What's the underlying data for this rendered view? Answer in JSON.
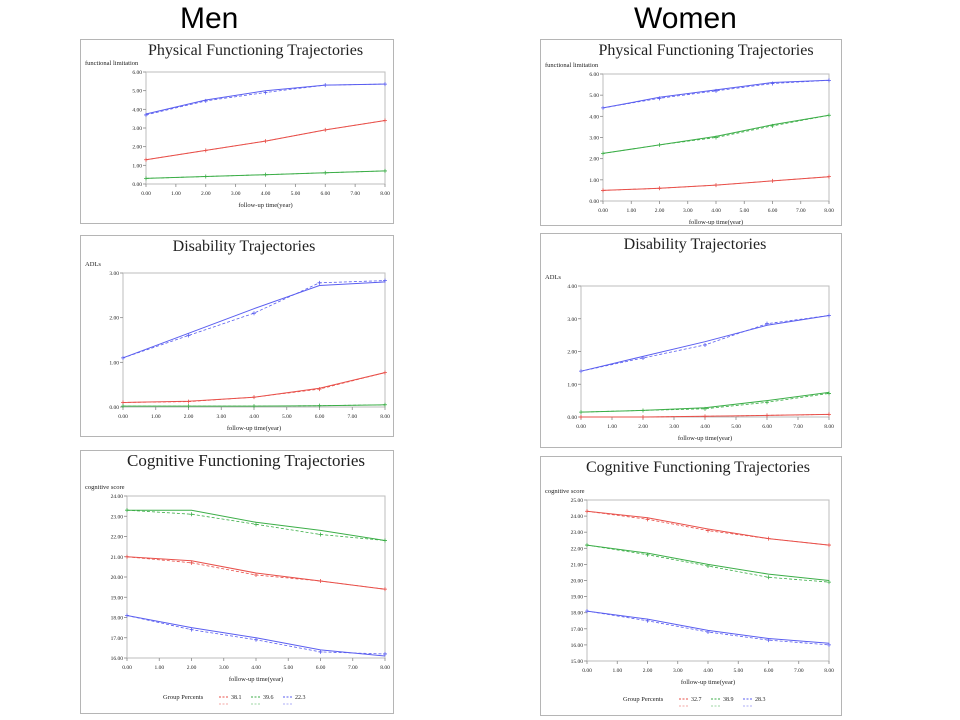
{
  "headings": {
    "left": "Men",
    "right": "Women"
  },
  "colors": {
    "red": "#e8504a",
    "green": "#3cae48",
    "blue": "#5a5ef0"
  },
  "chart_data": [
    {
      "id": "men-pf",
      "type": "line",
      "title": "Physical Functioning Trajectories",
      "ylabel": "functional limitation",
      "xlabel": "follow-up time(year)",
      "x": [
        0,
        2,
        4,
        6,
        8
      ],
      "xlim": [
        0,
        8
      ],
      "ylim": [
        0,
        6
      ],
      "xticks": [
        "0.00",
        "1.00",
        "2.00",
        "3.00",
        "4.00",
        "5.00",
        "6.00",
        "7.00",
        "8.00"
      ],
      "yticks": [
        "0.00",
        "1.00",
        "2.00",
        "3.00",
        "4.00",
        "5.00",
        "6.00"
      ],
      "series": [
        {
          "color": "red",
          "values": [
            1.3,
            1.8,
            2.3,
            2.9,
            3.4
          ],
          "observed": [
            1.3,
            1.8,
            2.3,
            2.9,
            3.4
          ]
        },
        {
          "color": "green",
          "values": [
            0.3,
            0.4,
            0.5,
            0.6,
            0.7
          ],
          "observed": [
            0.3,
            0.4,
            0.5,
            0.6,
            0.7
          ]
        },
        {
          "color": "blue",
          "values": [
            3.75,
            4.5,
            5.0,
            5.3,
            5.35
          ],
          "observed": [
            3.7,
            4.45,
            4.9,
            5.3,
            5.35
          ]
        }
      ]
    },
    {
      "id": "men-dis",
      "type": "line",
      "title": "Disability Trajectories",
      "ylabel": "ADLs",
      "xlabel": "follow-up time(year)",
      "x": [
        0,
        2,
        4,
        6,
        8
      ],
      "xlim": [
        0,
        8
      ],
      "ylim": [
        0,
        3
      ],
      "xticks": [
        "0.00",
        "1.00",
        "2.00",
        "3.00",
        "4.00",
        "5.00",
        "6.00",
        "7.00",
        "8.00"
      ],
      "yticks": [
        "0.00",
        "1.00",
        "2.00",
        "3.00"
      ],
      "series": [
        {
          "color": "red",
          "values": [
            0.1,
            0.13,
            0.22,
            0.42,
            0.77
          ],
          "observed": [
            0.1,
            0.12,
            0.22,
            0.4,
            0.77
          ]
        },
        {
          "color": "green",
          "values": [
            0.02,
            0.02,
            0.02,
            0.03,
            0.05
          ],
          "observed": [
            0.02,
            0.02,
            0.02,
            0.03,
            0.05
          ]
        },
        {
          "color": "blue",
          "values": [
            1.1,
            1.65,
            2.2,
            2.72,
            2.8
          ],
          "observed": [
            1.1,
            1.6,
            2.1,
            2.78,
            2.83
          ]
        }
      ]
    },
    {
      "id": "men-cog",
      "type": "line",
      "title": "Cognitive Functioning Trajectories",
      "ylabel": "cognitive score",
      "xlabel": "follow-up time(year)",
      "x": [
        0,
        2,
        4,
        6,
        8
      ],
      "xlim": [
        0,
        8
      ],
      "ylim": [
        16,
        24
      ],
      "xticks": [
        "0.00",
        "1.00",
        "2.00",
        "3.00",
        "4.00",
        "5.00",
        "6.00",
        "7.00",
        "8.00"
      ],
      "yticks": [
        "16.00",
        "17.00",
        "18.00",
        "19.00",
        "20.00",
        "21.00",
        "22.00",
        "23.00",
        "24.00"
      ],
      "legend": {
        "label": "Group Percents",
        "entries": [
          {
            "color": "red",
            "text": "38.1"
          },
          {
            "color": "green",
            "text": "39.6"
          },
          {
            "color": "blue",
            "text": "22.3"
          }
        ]
      },
      "series": [
        {
          "color": "red",
          "values": [
            21.0,
            20.8,
            20.2,
            19.8,
            19.4
          ],
          "observed": [
            21.0,
            20.7,
            20.1,
            19.8,
            19.4
          ]
        },
        {
          "color": "green",
          "values": [
            23.3,
            23.3,
            22.7,
            22.3,
            21.8
          ],
          "observed": [
            23.3,
            23.1,
            22.6,
            22.1,
            21.8
          ]
        },
        {
          "color": "blue",
          "values": [
            18.1,
            17.5,
            17.0,
            16.4,
            16.1
          ],
          "observed": [
            18.1,
            17.4,
            16.9,
            16.3,
            16.2
          ]
        }
      ]
    },
    {
      "id": "women-pf",
      "type": "line",
      "title": "Physical Functioning Trajectories",
      "ylabel": "functional limitation",
      "xlabel": "follow-up time(year)",
      "x": [
        0,
        2,
        4,
        6,
        8
      ],
      "xlim": [
        0,
        8
      ],
      "ylim": [
        0,
        6
      ],
      "xticks": [
        "0.00",
        "1.00",
        "2.00",
        "3.00",
        "4.00",
        "5.00",
        "6.00",
        "7.00",
        "8.00"
      ],
      "yticks": [
        "0.00",
        "1.00",
        "2.00",
        "3.00",
        "4.00",
        "5.00",
        "6.00"
      ],
      "series": [
        {
          "color": "red",
          "values": [
            0.5,
            0.6,
            0.75,
            0.95,
            1.15
          ],
          "observed": [
            0.5,
            0.6,
            0.75,
            0.95,
            1.15
          ]
        },
        {
          "color": "green",
          "values": [
            2.25,
            2.65,
            3.05,
            3.6,
            4.05
          ],
          "observed": [
            2.25,
            2.65,
            3.0,
            3.55,
            4.05
          ]
        },
        {
          "color": "blue",
          "values": [
            4.4,
            4.9,
            5.25,
            5.6,
            5.7
          ],
          "observed": [
            4.4,
            4.85,
            5.2,
            5.55,
            5.7
          ]
        }
      ]
    },
    {
      "id": "women-dis",
      "type": "line",
      "title": "Disability Trajectories",
      "ylabel": "ADLs",
      "xlabel": "follow-up time(year)",
      "x": [
        0,
        2,
        4,
        6,
        8
      ],
      "xlim": [
        0,
        8
      ],
      "ylim": [
        0,
        4
      ],
      "xticks": [
        "0.00",
        "1.00",
        "2.00",
        "3.00",
        "4.00",
        "5.00",
        "6.00",
        "7.00",
        "8.00"
      ],
      "yticks": [
        "0.00",
        "1.00",
        "2.00",
        "3.00",
        "4.00"
      ],
      "series": [
        {
          "color": "red",
          "values": [
            0.0,
            0.0,
            0.02,
            0.05,
            0.08
          ],
          "observed": [
            0.0,
            0.0,
            0.02,
            0.05,
            0.08
          ]
        },
        {
          "color": "green",
          "values": [
            0.15,
            0.2,
            0.28,
            0.5,
            0.75
          ],
          "observed": [
            0.15,
            0.2,
            0.25,
            0.45,
            0.72
          ]
        },
        {
          "color": "blue",
          "values": [
            1.4,
            1.85,
            2.3,
            2.8,
            3.1
          ],
          "observed": [
            1.4,
            1.8,
            2.2,
            2.85,
            3.1
          ]
        }
      ]
    },
    {
      "id": "women-cog",
      "type": "line",
      "title": "Cognitive Functioning Trajectories",
      "ylabel": "cognitive score",
      "xlabel": "follow-up time(year)",
      "x": [
        0,
        2,
        4,
        6,
        8
      ],
      "xlim": [
        0,
        8
      ],
      "ylim": [
        15,
        25
      ],
      "xticks": [
        "0.00",
        "1.00",
        "2.00",
        "3.00",
        "4.00",
        "5.00",
        "6.00",
        "7.00",
        "8.00"
      ],
      "yticks": [
        "15.00",
        "16.00",
        "17.00",
        "18.00",
        "19.00",
        "20.00",
        "21.00",
        "22.00",
        "23.00",
        "24.00",
        "25.00"
      ],
      "legend": {
        "label": "Group Percents",
        "entries": [
          {
            "color": "red",
            "text": "32.7"
          },
          {
            "color": "green",
            "text": "38.9"
          },
          {
            "color": "blue",
            "text": "28.3"
          }
        ]
      },
      "series": [
        {
          "color": "red",
          "values": [
            24.3,
            23.9,
            23.2,
            22.6,
            22.2
          ],
          "observed": [
            24.3,
            23.8,
            23.1,
            22.6,
            22.2
          ]
        },
        {
          "color": "green",
          "values": [
            22.2,
            21.7,
            21.0,
            20.4,
            20.0
          ],
          "observed": [
            22.2,
            21.6,
            20.9,
            20.2,
            19.9
          ]
        },
        {
          "color": "blue",
          "values": [
            18.1,
            17.6,
            16.9,
            16.4,
            16.1
          ],
          "observed": [
            18.1,
            17.5,
            16.8,
            16.3,
            16.0
          ]
        }
      ]
    }
  ]
}
